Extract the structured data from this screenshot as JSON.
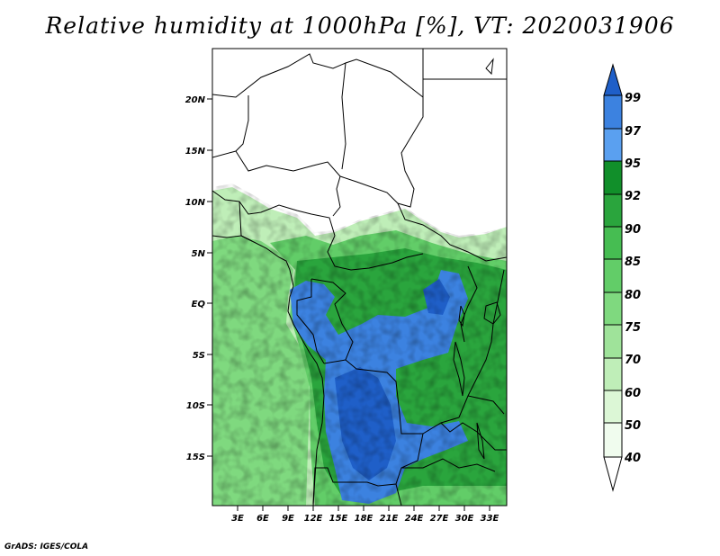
{
  "title": "Relative humidity at 1000hPa [%], VT: 2020031906",
  "credit": "GrADS: IGES/COLA",
  "map": {
    "lat_labels": [
      "20N",
      "15N",
      "10N",
      "5N",
      "EQ",
      "5S",
      "10S",
      "15S"
    ],
    "lon_labels": [
      "3E",
      "6E",
      "9E",
      "12E",
      "15E",
      "18E",
      "21E",
      "24E",
      "27E",
      "30E",
      "33E"
    ]
  },
  "colorbar": {
    "labels": [
      "99",
      "97",
      "95",
      "92",
      "90",
      "85",
      "80",
      "75",
      "70",
      "60",
      "50",
      "40"
    ],
    "colors": [
      "#1f5fc8",
      "#3c82e0",
      "#5aa0f0",
      "#118f2a",
      "#2aa53d",
      "#46bd52",
      "#62cd68",
      "#7fd97f",
      "#9fe39a",
      "#bfeeb8",
      "#dcf7d6",
      "#f0fcee"
    ]
  }
}
